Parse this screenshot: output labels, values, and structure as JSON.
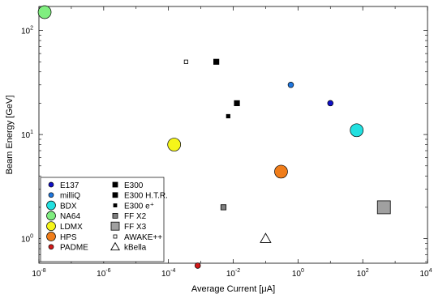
{
  "chart_data": {
    "type": "scatter",
    "title": "",
    "xlabel": "Average Current [μA]",
    "ylabel": "Beam Energy [GeV]",
    "xscale": "log",
    "yscale": "log",
    "xlim": [
      1e-08,
      10000
    ],
    "ylim": [
      0.58,
      170
    ],
    "grid": false,
    "legend_location": "bottom-left",
    "x_ticks": [
      {
        "value": 1e-08,
        "base": "10",
        "exp": "-8"
      },
      {
        "value": 1e-06,
        "base": "10",
        "exp": "-6"
      },
      {
        "value": 0.0001,
        "base": "10",
        "exp": "-4"
      },
      {
        "value": 0.01,
        "base": "10",
        "exp": "-2"
      },
      {
        "value": 1,
        "base": "10",
        "exp": "0"
      },
      {
        "value": 100,
        "base": "10",
        "exp": "2"
      },
      {
        "value": 10000,
        "base": "10",
        "exp": "4"
      }
    ],
    "y_ticks": [
      {
        "value": 1,
        "base": "10",
        "exp": "0"
      },
      {
        "value": 10,
        "base": "10",
        "exp": "1"
      },
      {
        "value": 100,
        "base": "10",
        "exp": "2"
      }
    ],
    "series": [
      {
        "name": "E137",
        "marker": "circle",
        "size": "small",
        "color": "#1010c8",
        "points": [
          {
            "x": 10,
            "y": 20
          }
        ]
      },
      {
        "name": "milliQ",
        "marker": "circle",
        "size": "small",
        "color": "#1f77e0",
        "points": [
          {
            "x": 0.6,
            "y": 30
          }
        ]
      },
      {
        "name": "BDX",
        "marker": "circle",
        "size": "large",
        "color": "#22e0e0",
        "points": [
          {
            "x": 65,
            "y": 11
          }
        ]
      },
      {
        "name": "NA64",
        "marker": "circle",
        "size": "large",
        "color": "#80ee80",
        "points": [
          {
            "x": 1.5e-08,
            "y": 150
          }
        ]
      },
      {
        "name": "LDMX",
        "marker": "circle",
        "size": "large",
        "color": "#f5f51a",
        "points": [
          {
            "x": 0.00015,
            "y": 8
          }
        ]
      },
      {
        "name": "HPS",
        "marker": "circle",
        "size": "large",
        "color": "#f07d1a",
        "points": [
          {
            "x": 0.3,
            "y": 4.4
          }
        ]
      },
      {
        "name": "PADME",
        "marker": "circle",
        "size": "small",
        "color": "#d21a1a",
        "points": [
          {
            "x": 0.0008,
            "y": 0.55
          }
        ]
      },
      {
        "name": "E300",
        "marker": "square",
        "size": "medium",
        "color": "#000000",
        "points": [
          {
            "x": 0.003,
            "y": 50
          },
          {
            "x": 0.013,
            "y": 20
          }
        ]
      },
      {
        "name": "E300 H.T.R.",
        "marker": "square",
        "size": "medium",
        "color": "#000000",
        "points": []
      },
      {
        "name": "E300 e⁺",
        "marker": "square",
        "size": "tiny",
        "color": "#000000",
        "points": [
          {
            "x": 0.007,
            "y": 15
          }
        ]
      },
      {
        "name": "FF X2",
        "marker": "square",
        "size": "medium",
        "color": "#808080",
        "points": [
          {
            "x": 0.005,
            "y": 2
          }
        ]
      },
      {
        "name": "FF X3",
        "marker": "square",
        "size": "large",
        "color": "#a0a0a0",
        "points": [
          {
            "x": 450,
            "y": 2
          }
        ]
      },
      {
        "name": "AWAKE++",
        "marker": "square-open",
        "size": "tiny",
        "color": "#000000",
        "points": [
          {
            "x": 0.00035,
            "y": 50
          }
        ]
      },
      {
        "name": "kBella",
        "marker": "triangle-open",
        "size": "large",
        "color": "#000000",
        "points": [
          {
            "x": 0.1,
            "y": 1
          }
        ]
      }
    ]
  }
}
